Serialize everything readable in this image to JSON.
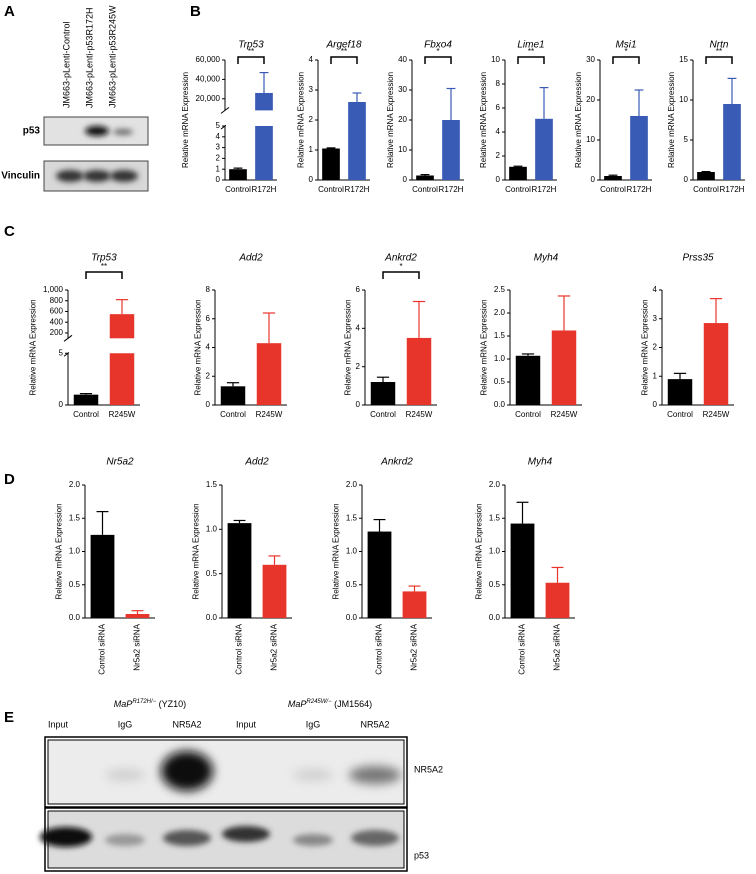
{
  "panel_labels": [
    "A",
    "B",
    "C",
    "D",
    "E"
  ],
  "blot_a": {
    "lanes": [
      "JM663-pLenti-Control",
      "JM663-pLenti-p53R172H",
      "JM663-pLenti-p53R245W"
    ],
    "rows": [
      "p53",
      "Vinculin"
    ]
  },
  "blot_e": {
    "groups": [
      {
        "name": "MaP",
        "sup": "R172H/−",
        "clone": " (YZ10)"
      },
      {
        "name": "MaP",
        "sup": "R245W/−",
        "clone": " (JM1564)"
      }
    ],
    "lanes": [
      "Input",
      "IgG",
      "NR5A2",
      "Input",
      "IgG",
      "NR5A2"
    ],
    "rows": [
      "NR5A2",
      "p53"
    ]
  },
  "chart_data": [
    {
      "type": "bar",
      "title": "Trp53",
      "ylabel": "Relative mRNA Expression",
      "categories": [
        "Control",
        "R172H"
      ],
      "colors": [
        "#000000",
        "#3a5bb5"
      ],
      "values": [
        1,
        26000
      ],
      "errors": [
        0.1,
        21000
      ],
      "significance": "**",
      "ylim": [
        0,
        60000
      ],
      "ybreak": [
        5,
        8000
      ],
      "yticks": [
        0,
        1,
        2,
        3,
        4,
        5,
        {
          "value": 20000,
          "label": "20,000"
        },
        {
          "value": 40000,
          "label": "40,000"
        },
        {
          "value": 60000,
          "label": "60,000"
        }
      ]
    },
    {
      "type": "bar",
      "title": "Argef18",
      "ylabel": "Relative mRNA Expression",
      "categories": [
        "Control",
        "R172H"
      ],
      "colors": [
        "#000000",
        "#3a5bb5"
      ],
      "values": [
        1.05,
        2.6
      ],
      "errors": [
        0.02,
        0.3
      ],
      "significance": "**",
      "ylim": [
        0,
        4
      ],
      "yticks": [
        0,
        1,
        2,
        3,
        4
      ]
    },
    {
      "type": "bar",
      "title": "Fbxo4",
      "ylabel": "Relative mRNA Expression",
      "categories": [
        "Control",
        "R172H"
      ],
      "colors": [
        "#000000",
        "#3a5bb5"
      ],
      "values": [
        1.5,
        20
      ],
      "errors": [
        0.3,
        10.5
      ],
      "significance": "*",
      "ylim": [
        0,
        40
      ],
      "yticks": [
        0,
        10,
        20,
        30,
        40
      ]
    },
    {
      "type": "bar",
      "title": "Lime1",
      "ylabel": "Relative mRNA Expression",
      "categories": [
        "Control",
        "R172H"
      ],
      "colors": [
        "#000000",
        "#3a5bb5"
      ],
      "values": [
        1.1,
        5.1
      ],
      "errors": [
        0.05,
        2.6
      ],
      "significance": "**",
      "ylim": [
        0,
        10
      ],
      "yticks": [
        0,
        2,
        4,
        6,
        8,
        10
      ]
    },
    {
      "type": "bar",
      "title": "Msi1",
      "ylabel": "Relative mRNA Expression",
      "categories": [
        "Control",
        "R172H"
      ],
      "colors": [
        "#000000",
        "#3a5bb5"
      ],
      "values": [
        1,
        16
      ],
      "errors": [
        0.2,
        6.5
      ],
      "significance": "*",
      "ylim": [
        0,
        30
      ],
      "yticks": [
        0,
        10,
        20,
        30
      ]
    },
    {
      "type": "bar",
      "title": "Nrtn",
      "ylabel": "Relative mRNA Expression",
      "categories": [
        "Control",
        "R172H"
      ],
      "colors": [
        "#000000",
        "#3a5bb5"
      ],
      "values": [
        1,
        9.5
      ],
      "errors": [
        0.05,
        3.2
      ],
      "significance": "**",
      "ylim": [
        0,
        15
      ],
      "yticks": [
        0,
        5,
        10,
        15
      ]
    },
    {
      "type": "bar",
      "title": "Trp53",
      "ylabel": "Relative mRNA Expression",
      "categories": [
        "Control",
        "R245W"
      ],
      "colors": [
        "#000000",
        "#e8352b"
      ],
      "values": [
        1,
        550
      ],
      "errors": [
        0.1,
        270
      ],
      "significance": "**",
      "ylim": [
        0,
        1000
      ],
      "ybreak": [
        5,
        100
      ],
      "yticks": [
        0,
        5,
        200,
        400,
        600,
        800,
        {
          "value": 1000,
          "label": "1,000"
        }
      ]
    },
    {
      "type": "bar",
      "title": "Add2",
      "ylabel": "Relative mRNA Expression",
      "categories": [
        "Control",
        "R245W"
      ],
      "colors": [
        "#000000",
        "#e8352b"
      ],
      "values": [
        1.3,
        4.3
      ],
      "errors": [
        0.25,
        2.1
      ],
      "ylim": [
        0,
        8
      ],
      "yticks": [
        0,
        2,
        4,
        6,
        8
      ]
    },
    {
      "type": "bar",
      "title": "Ankrd2",
      "ylabel": "Relative mRNA Expression",
      "categories": [
        "Control",
        "R245W"
      ],
      "colors": [
        "#000000",
        "#e8352b"
      ],
      "values": [
        1.2,
        3.5
      ],
      "errors": [
        0.25,
        1.9
      ],
      "significance": "*",
      "ylim": [
        0,
        6
      ],
      "yticks": [
        0,
        2,
        4,
        6
      ]
    },
    {
      "type": "bar",
      "title": "Myh4",
      "ylabel": "Relative mRNA Expression",
      "categories": [
        "Control",
        "R245W"
      ],
      "colors": [
        "#000000",
        "#e8352b"
      ],
      "values": [
        1.07,
        1.62
      ],
      "errors": [
        0.04,
        0.75
      ],
      "ylim": [
        0,
        2.5
      ],
      "yticks": [
        {
          "value": 0,
          "label": "0.0"
        },
        0.5,
        {
          "value": 1,
          "label": "1.0"
        },
        1.5,
        {
          "value": 2,
          "label": "2.0"
        },
        2.5
      ]
    },
    {
      "type": "bar",
      "title": "Prss35",
      "ylabel": "Relative mRNA Expression",
      "categories": [
        "Control",
        "R245W"
      ],
      "colors": [
        "#000000",
        "#e8352b"
      ],
      "values": [
        0.9,
        2.85
      ],
      "errors": [
        0.2,
        0.85
      ],
      "ylim": [
        0,
        4
      ],
      "yticks": [
        0,
        1,
        2,
        3,
        4
      ]
    },
    {
      "type": "bar",
      "title": "Nr5a2",
      "ylabel": "Relative mRNA Expression",
      "categories": [
        "Control siRNA",
        "Nr5a2 siRNA"
      ],
      "colors": [
        "#000000",
        "#e8352b"
      ],
      "values": [
        1.25,
        0.06
      ],
      "errors": [
        0.35,
        0.05
      ],
      "ylim": [
        0,
        2
      ],
      "yticks": [
        {
          "value": 0,
          "label": "0.0"
        },
        0.5,
        {
          "value": 1,
          "label": "1.0"
        },
        1.5,
        {
          "value": 2,
          "label": "2.0"
        }
      ]
    },
    {
      "type": "bar",
      "title": "Add2",
      "ylabel": "Relative mRNA Expression",
      "categories": [
        "Control siRNA",
        "Nr5a2 siRNA"
      ],
      "colors": [
        "#000000",
        "#e8352b"
      ],
      "values": [
        1.07,
        0.6
      ],
      "errors": [
        0.03,
        0.1
      ],
      "ylim": [
        0,
        1.5
      ],
      "yticks": [
        {
          "value": 0,
          "label": "0.0"
        },
        0.5,
        {
          "value": 1,
          "label": "1.0"
        },
        1.5
      ]
    },
    {
      "type": "bar",
      "title": "Ankrd2",
      "ylabel": "Relative mRNA Expression",
      "categories": [
        "Control siRNA",
        "Nr5a2 siRNA"
      ],
      "colors": [
        "#000000",
        "#e8352b"
      ],
      "values": [
        1.3,
        0.4
      ],
      "errors": [
        0.18,
        0.08
      ],
      "ylim": [
        0,
        2
      ],
      "yticks": [
        {
          "value": 0,
          "label": "0.0"
        },
        0.5,
        {
          "value": 1,
          "label": "1.0"
        },
        1.5,
        {
          "value": 2,
          "label": "2.0"
        }
      ]
    },
    {
      "type": "bar",
      "title": "Myh4",
      "ylabel": "Relative mRNA Expression",
      "categories": [
        "Control siRNA",
        "Nr5a2 siRNA"
      ],
      "colors": [
        "#000000",
        "#e8352b"
      ],
      "values": [
        1.42,
        0.53
      ],
      "errors": [
        0.32,
        0.23
      ],
      "ylim": [
        0,
        2
      ],
      "yticks": [
        {
          "value": 0,
          "label": "0.0"
        },
        0.5,
        {
          "value": 1,
          "label": "1.0"
        },
        1.5,
        {
          "value": 2,
          "label": "2.0"
        }
      ]
    }
  ]
}
